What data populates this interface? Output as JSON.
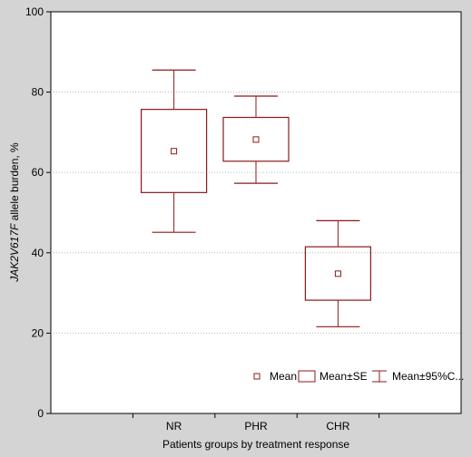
{
  "chart_data": {
    "type": "box",
    "xlabel": "Patients groups by treatment response",
    "ylabel": "JAK2V617F allele burden, %",
    "ylabel_parts": {
      "italic": "JAK2V617F",
      "rest": " allele burden, %"
    },
    "ylim": [
      0,
      100
    ],
    "yticks": [
      0,
      20,
      40,
      60,
      80,
      100
    ],
    "grid": "horizontal dotted",
    "legend_position": "bottom-right",
    "categories": [
      "NR",
      "PHR",
      "CHR"
    ],
    "groups": [
      {
        "category": "NR",
        "mean": 65.3,
        "se_low": 55.0,
        "se_high": 75.7,
        "ci_low": 45.1,
        "ci_high": 85.5
      },
      {
        "category": "PHR",
        "mean": 68.2,
        "se_low": 62.8,
        "se_high": 73.7,
        "ci_low": 57.3,
        "ci_high": 79.0
      },
      {
        "category": "CHR",
        "mean": 34.8,
        "se_low": 28.2,
        "se_high": 41.5,
        "ci_low": 21.6,
        "ci_high": 48.0
      }
    ],
    "legend": [
      {
        "key": "mean",
        "label": "Mean"
      },
      {
        "key": "se",
        "label": "Mean±SE"
      },
      {
        "key": "ci",
        "label": "Mean±95%C..."
      }
    ],
    "colors": {
      "series": "#8b1a1a",
      "plot_bg": "#ffffff",
      "page_bg": "#d4d4d4",
      "grid": "#b8b8b8"
    }
  }
}
